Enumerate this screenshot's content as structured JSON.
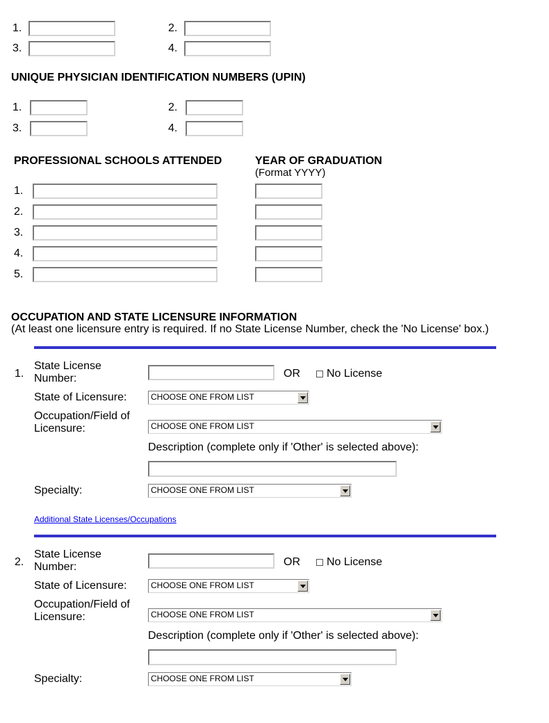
{
  "top_fields": {
    "numbers": [
      "1.",
      "2.",
      "3.",
      "4."
    ]
  },
  "upin": {
    "heading": "UNIQUE PHYSICIAN IDENTIFICATION NUMBERS (UPIN)",
    "numbers": [
      "1.",
      "2.",
      "3.",
      "4."
    ]
  },
  "schools": {
    "heading": "PROFESSIONAL SCHOOLS ATTENDED",
    "year_heading": "YEAR OF GRADUATION",
    "year_format": "(Format YYYY)",
    "numbers": [
      "1.",
      "2.",
      "3.",
      "4.",
      "5."
    ]
  },
  "licensure": {
    "heading": "OCCUPATION AND STATE LICENSURE INFORMATION",
    "note": "(At least one licensure entry is required. If no State License Number, check the 'No License' box.)",
    "labels": {
      "license_1": "State License",
      "license_2": "Number:",
      "or": "OR",
      "no_license": "No License",
      "state": "State of Licensure:",
      "occupation_1": "Occupation/Field of",
      "occupation_2": "Licensure:",
      "description": "Description (complete only if 'Other' is selected above):",
      "specialty": "Specialty:"
    },
    "select_default": "CHOOSE ONE FROM LIST",
    "entries": [
      {
        "number": "1.",
        "no_license_checked": false
      },
      {
        "number": "2.",
        "no_license_checked": false
      }
    ],
    "additional_link": "Additional State Licenses/Occupations"
  },
  "colors": {
    "divider": "#3333cc",
    "link": "#0000ee"
  }
}
